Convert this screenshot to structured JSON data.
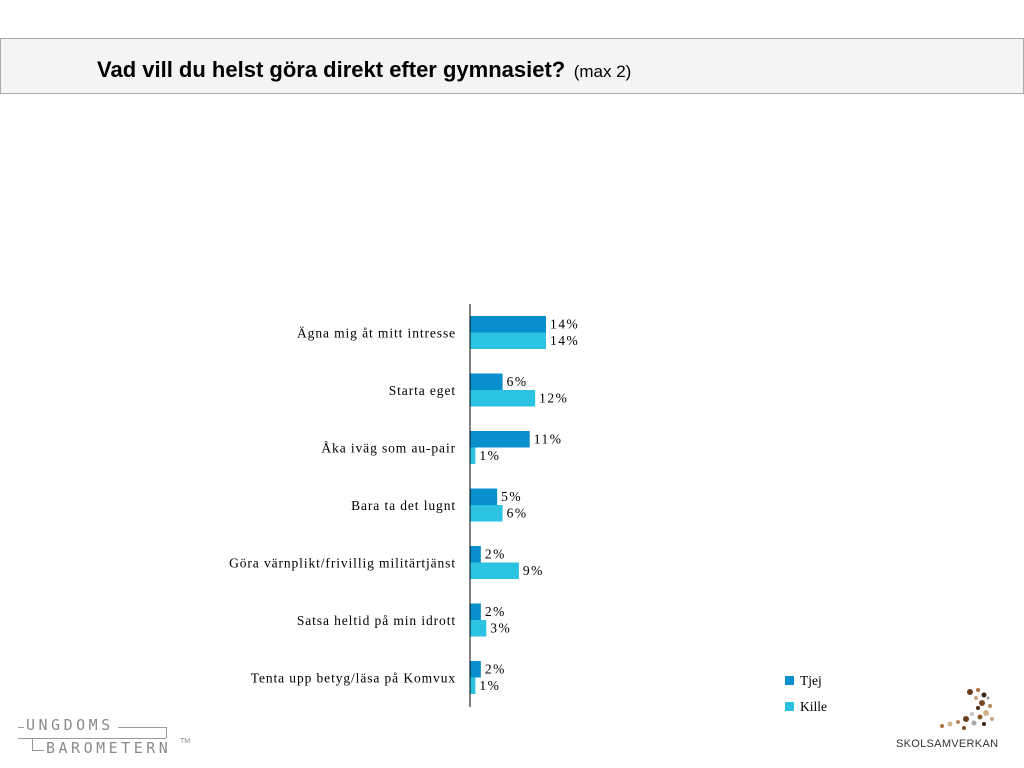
{
  "header": {
    "title": "Vad vill du helst göra direkt efter gymnasiet?",
    "subtitle": "(max 2)"
  },
  "colors": {
    "tjej": "#0a8fce",
    "kille": "#2cc3e3",
    "axis": "#000000"
  },
  "chart_data": {
    "type": "bar",
    "orientation": "horizontal",
    "categories": [
      "Ägna mig åt mitt intresse",
      "Starta eget",
      "Åka iväg som au-pair",
      "Bara ta det lugnt",
      "Göra värnplikt/frivillig militärtjänst",
      "Satsa heltid på min idrott",
      "Tenta upp betyg/läsa på Komvux"
    ],
    "series": [
      {
        "name": "Tjej",
        "values": [
          14,
          6,
          11,
          5,
          2,
          2,
          2
        ]
      },
      {
        "name": "Kille",
        "values": [
          14,
          12,
          1,
          6,
          9,
          3,
          1
        ]
      }
    ],
    "value_suffix": "%",
    "xlim": [
      0,
      100
    ],
    "grid": false,
    "legend": "bottom-right"
  },
  "logos": {
    "left_line1": "UNGDOMS",
    "left_line2": "BAROMETERN",
    "left_tm": "TM",
    "right": "SKOLSAMVERKAN"
  }
}
